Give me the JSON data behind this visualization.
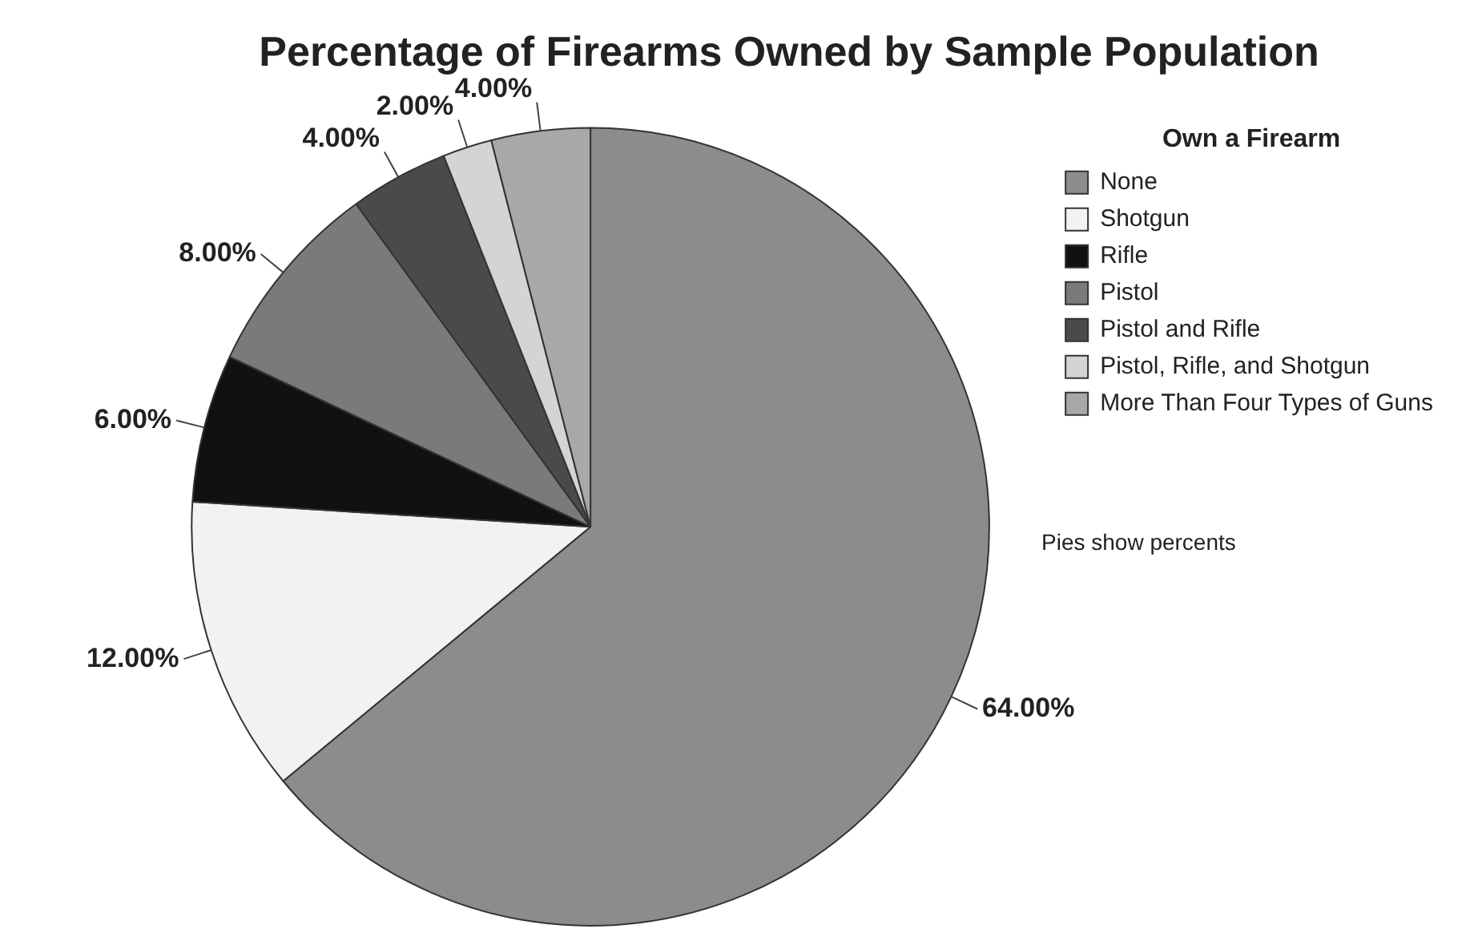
{
  "chart_data": {
    "type": "pie",
    "title": "Percentage of Firearms Owned by Sample Population",
    "legend_title": "Own a Firearm",
    "legend": "right",
    "categories": [
      "None",
      "Shotgun",
      "Rifle",
      "Pistol",
      "Pistol and Rifle",
      "Pistol, Rifle, and Shotgun",
      "More Than Four Types of Guns"
    ],
    "values": [
      64,
      12,
      6,
      8,
      4,
      2,
      4
    ],
    "value_labels": [
      "64.00%",
      "12.00%",
      "6.00%",
      "8.00%",
      "4.00%",
      "2.00%",
      "4.00%"
    ],
    "colors": [
      "#8c8c8c",
      "#f2f2f2",
      "#111111",
      "#7a7a7a",
      "#4a4a4a",
      "#d4d4d4",
      "#a8a8a8"
    ],
    "annotations": [
      "Pies show percents"
    ]
  }
}
